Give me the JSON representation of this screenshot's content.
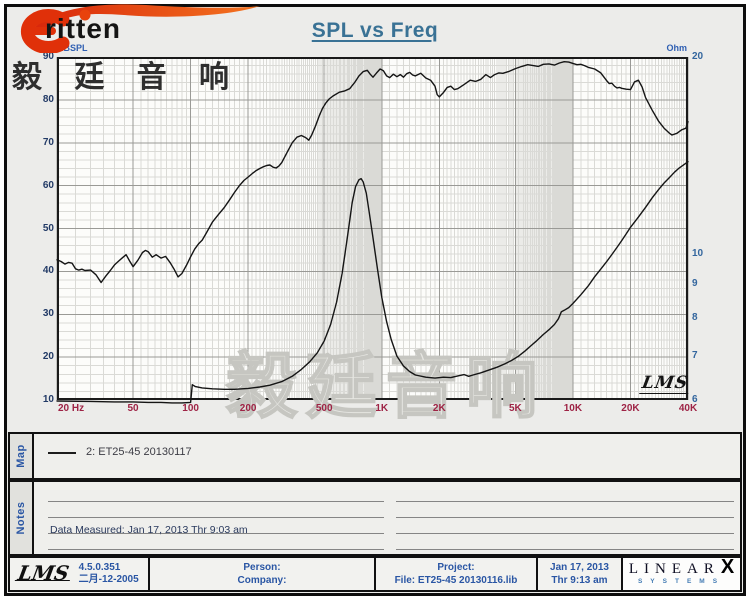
{
  "brand": {
    "wordmark": "ritten",
    "header_cjk": "毅 廷 音 响"
  },
  "title": "SPL vs Freq",
  "watermark": "毅廷音响",
  "axis_captions": {
    "left": "dBSPL",
    "right": "Ohm"
  },
  "corner_logo": "LMS",
  "chart_data": {
    "type": "line",
    "title": "SPL vs Freq",
    "x_axis": {
      "unit": "Hz",
      "scale": "log",
      "min": 20,
      "max": 40000,
      "ticks": [
        {
          "value": 20,
          "label": "20  Hz"
        },
        {
          "value": 50,
          "label": "50"
        },
        {
          "value": 100,
          "label": "100"
        },
        {
          "value": 200,
          "label": "200"
        },
        {
          "value": 500,
          "label": "500"
        },
        {
          "value": 1000,
          "label": "1K"
        },
        {
          "value": 2000,
          "label": "2K"
        },
        {
          "value": 5000,
          "label": "5K"
        },
        {
          "value": 10000,
          "label": "10K"
        },
        {
          "value": 20000,
          "label": "20K"
        },
        {
          "value": 40000,
          "label": "40K"
        }
      ]
    },
    "y_axis_left": {
      "label": "dBSPL",
      "scale": "linear",
      "min": 10,
      "max": 90,
      "ticks": [
        90,
        80,
        70,
        60,
        50,
        40,
        30,
        20,
        10
      ],
      "minor_step": 2,
      "major_step": 10
    },
    "y_axis_right": {
      "label": "Ohm",
      "scale": "log",
      "min": 6,
      "max": 20,
      "ticks": [
        20,
        10,
        9,
        8,
        7,
        6
      ]
    },
    "grid": {
      "shown": true
    },
    "legend": [
      {
        "label": "2: ET25-45  20130117"
      }
    ],
    "series": [
      {
        "name": "2: ET25-45 20130117 - SPL",
        "axis": "left",
        "points": [
          [
            20,
            42.7
          ],
          [
            21,
            42.3
          ],
          [
            22,
            41.7
          ],
          [
            23,
            42.1
          ],
          [
            24,
            41.9
          ],
          [
            25,
            40.6
          ],
          [
            26,
            40.3
          ],
          [
            27,
            40.5
          ],
          [
            28,
            40.2
          ],
          [
            30,
            40.3
          ],
          [
            32,
            39.2
          ],
          [
            34,
            37.4
          ],
          [
            36,
            38.9
          ],
          [
            38,
            40.2
          ],
          [
            40,
            41.5
          ],
          [
            42,
            42.4
          ],
          [
            44,
            43.2
          ],
          [
            46,
            43.9
          ],
          [
            48,
            42.4
          ],
          [
            50,
            41.1
          ],
          [
            53,
            42.6
          ],
          [
            56,
            44.4
          ],
          [
            58,
            44.9
          ],
          [
            60,
            44.6
          ],
          [
            63,
            43.3
          ],
          [
            66,
            43.9
          ],
          [
            70,
            43.1
          ],
          [
            74,
            43.5
          ],
          [
            78,
            42.1
          ],
          [
            82,
            40.5
          ],
          [
            86,
            38.7
          ],
          [
            90,
            39.5
          ],
          [
            95,
            41.4
          ],
          [
            100,
            43.4
          ],
          [
            105,
            45.2
          ],
          [
            110,
            46.4
          ],
          [
            115,
            47.3
          ],
          [
            120,
            48.7
          ],
          [
            130,
            51.5
          ],
          [
            140,
            53.3
          ],
          [
            150,
            54.9
          ],
          [
            160,
            56.7
          ],
          [
            170,
            58.5
          ],
          [
            180,
            60.0
          ],
          [
            190,
            61.2
          ],
          [
            200,
            62.0
          ],
          [
            210,
            62.8
          ],
          [
            220,
            63.5
          ],
          [
            230,
            64.0
          ],
          [
            240,
            64.4
          ],
          [
            250,
            64.7
          ],
          [
            260,
            64.8
          ],
          [
            270,
            64.3
          ],
          [
            280,
            64.1
          ],
          [
            290,
            64.6
          ],
          [
            300,
            65.4
          ],
          [
            320,
            67.8
          ],
          [
            340,
            70.0
          ],
          [
            360,
            71.3
          ],
          [
            380,
            71.7
          ],
          [
            400,
            71.2
          ],
          [
            415,
            70.6
          ],
          [
            430,
            71.8
          ],
          [
            450,
            73.9
          ],
          [
            470,
            76.2
          ],
          [
            490,
            78.0
          ],
          [
            510,
            79.3
          ],
          [
            530,
            80.2
          ],
          [
            560,
            81.0
          ],
          [
            600,
            81.8
          ],
          [
            640,
            82.1
          ],
          [
            680,
            82.6
          ],
          [
            720,
            84.0
          ],
          [
            760,
            85.6
          ],
          [
            800,
            86.6
          ],
          [
            840,
            86.9
          ],
          [
            870,
            86.0
          ],
          [
            900,
            85.3
          ],
          [
            940,
            86.3
          ],
          [
            980,
            87.2
          ],
          [
            1020,
            86.8
          ],
          [
            1060,
            85.6
          ],
          [
            1100,
            85.2
          ],
          [
            1150,
            86.0
          ],
          [
            1200,
            85.4
          ],
          [
            1250,
            85.9
          ],
          [
            1300,
            85.3
          ],
          [
            1350,
            86.1
          ],
          [
            1400,
            86.4
          ],
          [
            1450,
            85.8
          ],
          [
            1500,
            85.6
          ],
          [
            1600,
            86.2
          ],
          [
            1700,
            85.1
          ],
          [
            1800,
            84.6
          ],
          [
            1900,
            83.2
          ],
          [
            1950,
            81.2
          ],
          [
            2000,
            80.7
          ],
          [
            2100,
            81.7
          ],
          [
            2200,
            82.9
          ],
          [
            2300,
            83.2
          ],
          [
            2400,
            82.4
          ],
          [
            2500,
            82.6
          ],
          [
            2700,
            83.6
          ],
          [
            2900,
            84.6
          ],
          [
            3100,
            84.3
          ],
          [
            3300,
            84.8
          ],
          [
            3500,
            85.9
          ],
          [
            3700,
            85.2
          ],
          [
            3900,
            85.9
          ],
          [
            4100,
            86.3
          ],
          [
            4300,
            86.2
          ],
          [
            4600,
            86.6
          ],
          [
            5000,
            87.3
          ],
          [
            5400,
            87.8
          ],
          [
            5800,
            88.2
          ],
          [
            6200,
            88.0
          ],
          [
            6600,
            87.8
          ],
          [
            7000,
            88.3
          ],
          [
            7500,
            88.4
          ],
          [
            8000,
            88.1
          ],
          [
            8500,
            88.6
          ],
          [
            9000,
            88.9
          ],
          [
            9500,
            88.8
          ],
          [
            10000,
            88.5
          ],
          [
            10500,
            88.2
          ],
          [
            11000,
            88.3
          ],
          [
            11500,
            88.0
          ],
          [
            12000,
            87.6
          ],
          [
            13000,
            87.2
          ],
          [
            14000,
            86.3
          ],
          [
            15000,
            84.5
          ],
          [
            15500,
            83.8
          ],
          [
            16000,
            83.9
          ],
          [
            16500,
            83.2
          ],
          [
            17000,
            82.8
          ],
          [
            17500,
            82.9
          ],
          [
            18000,
            82.7
          ],
          [
            19000,
            82.5
          ],
          [
            20000,
            82.4
          ],
          [
            21000,
            84.2
          ],
          [
            22000,
            84.6
          ],
          [
            23000,
            83.0
          ],
          [
            24000,
            80.5
          ],
          [
            26000,
            77.6
          ],
          [
            28000,
            75.1
          ],
          [
            30000,
            73.4
          ],
          [
            32000,
            72.2
          ],
          [
            33000,
            71.8
          ],
          [
            35000,
            72.2
          ],
          [
            37000,
            73.0
          ],
          [
            39000,
            73.4
          ],
          [
            40000,
            74.9
          ]
        ]
      },
      {
        "name": "2: ET25-45 20130117 - Impedance",
        "axis": "right",
        "points": [
          [
            20,
            5.98
          ],
          [
            30,
            5.97
          ],
          [
            40,
            5.96
          ],
          [
            50,
            5.96
          ],
          [
            60,
            5.95
          ],
          [
            70,
            5.95
          ],
          [
            80,
            5.94
          ],
          [
            90,
            5.94
          ],
          [
            100,
            5.95
          ],
          [
            102,
            6.33
          ],
          [
            106,
            6.29
          ],
          [
            115,
            6.26
          ],
          [
            130,
            6.24
          ],
          [
            150,
            6.23
          ],
          [
            170,
            6.23
          ],
          [
            200,
            6.25
          ],
          [
            230,
            6.28
          ],
          [
            260,
            6.32
          ],
          [
            300,
            6.4
          ],
          [
            340,
            6.52
          ],
          [
            380,
            6.68
          ],
          [
            420,
            6.86
          ],
          [
            460,
            7.08
          ],
          [
            500,
            7.38
          ],
          [
            540,
            7.82
          ],
          [
            580,
            8.45
          ],
          [
            620,
            9.35
          ],
          [
            660,
            10.6
          ],
          [
            700,
            12.0
          ],
          [
            730,
            12.7
          ],
          [
            760,
            13.0
          ],
          [
            780,
            13.05
          ],
          [
            800,
            12.9
          ],
          [
            830,
            12.4
          ],
          [
            860,
            11.6
          ],
          [
            900,
            10.6
          ],
          [
            950,
            9.5
          ],
          [
            1000,
            8.6
          ],
          [
            1060,
            7.9
          ],
          [
            1120,
            7.42
          ],
          [
            1200,
            7.0
          ],
          [
            1300,
            6.76
          ],
          [
            1400,
            6.63
          ],
          [
            1500,
            6.55
          ],
          [
            1700,
            6.5
          ],
          [
            1900,
            6.48
          ],
          [
            2100,
            6.5
          ],
          [
            2300,
            6.49
          ],
          [
            2500,
            6.53
          ],
          [
            2700,
            6.56
          ],
          [
            2850,
            6.52
          ],
          [
            3000,
            6.55
          ],
          [
            3300,
            6.6
          ],
          [
            3600,
            6.66
          ],
          [
            4000,
            6.73
          ],
          [
            4400,
            6.81
          ],
          [
            4800,
            6.9
          ],
          [
            5200,
            7.0
          ],
          [
            5600,
            7.12
          ],
          [
            6000,
            7.25
          ],
          [
            6500,
            7.4
          ],
          [
            7000,
            7.55
          ],
          [
            7500,
            7.68
          ],
          [
            8000,
            7.82
          ],
          [
            8400,
            7.98
          ],
          [
            8700,
            8.18
          ],
          [
            9000,
            8.22
          ],
          [
            9500,
            8.3
          ],
          [
            10000,
            8.42
          ],
          [
            11000,
            8.68
          ],
          [
            12000,
            8.95
          ],
          [
            13000,
            9.25
          ],
          [
            14000,
            9.5
          ],
          [
            15000,
            9.75
          ],
          [
            16000,
            10.0
          ],
          [
            17000,
            10.25
          ],
          [
            18000,
            10.5
          ],
          [
            19000,
            10.75
          ],
          [
            20000,
            11.0
          ],
          [
            22000,
            11.4
          ],
          [
            24000,
            11.8
          ],
          [
            26000,
            12.2
          ],
          [
            28000,
            12.55
          ],
          [
            30000,
            12.85
          ],
          [
            32000,
            13.1
          ],
          [
            34000,
            13.35
          ],
          [
            36000,
            13.55
          ],
          [
            38000,
            13.7
          ],
          [
            40000,
            13.85
          ]
        ]
      }
    ]
  },
  "map_panel": {
    "label": "Map",
    "legend_text": "2: ET25-45  20130117"
  },
  "notes_panel": {
    "label": "Notes",
    "data_measured": "Data Measured: Jan 17, 2013  Thr  9:03 am"
  },
  "footer": {
    "lms_script": "LMS",
    "version": "4.5.0.351",
    "version_date": "二月-12-2005",
    "person_label": "Person:",
    "company_label": "Company:",
    "project_label": "Project:",
    "file_text": "File: ET25-45 20130116.lib",
    "date_text": "Jan 17, 2013",
    "time_text": "Thr  9:13 am",
    "linearx_text": "LINEAR",
    "linearx_x": "X",
    "linearx_sub": "SYSTEMS"
  },
  "colors": {
    "title": "#3a7295",
    "axis_caption_blue": "#2f5fb2",
    "left_ticks": "#223a66",
    "right_ticks": "#33669e",
    "freq_ticks": "#9e2345",
    "footer_blue": "#2a56a4",
    "logo_red": "#e23a0e",
    "curve": "#151515"
  }
}
